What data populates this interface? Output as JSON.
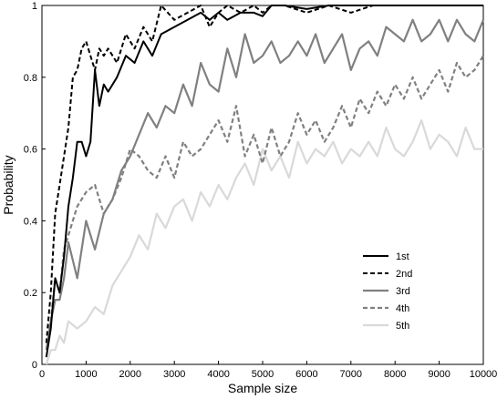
{
  "chart_data": {
    "type": "line",
    "title": "",
    "xlabel": "Sample size",
    "ylabel": "Probability",
    "xlim": [
      0,
      10000
    ],
    "ylim": [
      0,
      1
    ],
    "xticks": [
      0,
      1000,
      2000,
      3000,
      4000,
      5000,
      6000,
      7000,
      8000,
      9000,
      10000
    ],
    "yticks": [
      0,
      0.2,
      0.4,
      0.6,
      0.8,
      1
    ],
    "grid": false,
    "legend_position": "lower-right",
    "series": [
      {
        "name": "1st",
        "color": "#000000",
        "dash": "solid",
        "x": [
          100,
          200,
          300,
          400,
          500,
          600,
          700,
          800,
          900,
          1000,
          1100,
          1200,
          1300,
          1400,
          1500,
          1700,
          1900,
          2100,
          2300,
          2500,
          2700,
          3000,
          3300,
          3600,
          3800,
          4000,
          4200,
          4500,
          4800,
          5000,
          5200,
          5500,
          6000,
          6500,
          7000,
          7500,
          8000,
          8500,
          9000,
          9500,
          10000
        ],
        "y": [
          0.02,
          0.1,
          0.24,
          0.2,
          0.3,
          0.44,
          0.52,
          0.62,
          0.62,
          0.58,
          0.62,
          0.82,
          0.72,
          0.78,
          0.76,
          0.8,
          0.86,
          0.84,
          0.9,
          0.86,
          0.92,
          0.94,
          0.96,
          0.98,
          0.96,
          0.98,
          0.96,
          0.98,
          0.98,
          0.97,
          1.0,
          1.0,
          0.99,
          1.0,
          1.0,
          1.0,
          1.0,
          1.0,
          1.0,
          1.0,
          1.0
        ]
      },
      {
        "name": "2nd",
        "color": "#000000",
        "dash": "dashed",
        "x": [
          100,
          200,
          300,
          400,
          500,
          600,
          700,
          800,
          900,
          1000,
          1100,
          1200,
          1300,
          1400,
          1500,
          1700,
          1900,
          2100,
          2300,
          2500,
          2700,
          3000,
          3300,
          3600,
          3800,
          4000,
          4200,
          4500,
          4800,
          5000,
          5200,
          5500,
          6000,
          6500,
          7000,
          7500
        ],
        "y": [
          0.06,
          0.2,
          0.42,
          0.5,
          0.58,
          0.66,
          0.8,
          0.82,
          0.88,
          0.9,
          0.86,
          0.82,
          0.88,
          0.86,
          0.88,
          0.84,
          0.92,
          0.88,
          0.94,
          0.9,
          1.0,
          0.96,
          0.98,
          1.0,
          0.94,
          0.98,
          1.0,
          0.98,
          1.0,
          0.98,
          1.0,
          1.0,
          0.98,
          1.0,
          0.98,
          1.0
        ]
      },
      {
        "name": "3rd",
        "color": "#808080",
        "dash": "solid",
        "x": [
          100,
          200,
          300,
          400,
          500,
          600,
          800,
          1000,
          1200,
          1400,
          1600,
          1800,
          2000,
          2200,
          2400,
          2600,
          2800,
          3000,
          3200,
          3400,
          3600,
          3800,
          4000,
          4200,
          4400,
          4600,
          4800,
          5000,
          5200,
          5400,
          5600,
          5800,
          6000,
          6200,
          6400,
          6600,
          6800,
          7000,
          7200,
          7400,
          7600,
          7800,
          8000,
          8200,
          8400,
          8600,
          8800,
          9000,
          9200,
          9400,
          9600,
          9800,
          10000
        ],
        "y": [
          0.04,
          0.12,
          0.18,
          0.18,
          0.24,
          0.34,
          0.24,
          0.4,
          0.32,
          0.42,
          0.46,
          0.54,
          0.58,
          0.64,
          0.7,
          0.66,
          0.72,
          0.7,
          0.78,
          0.72,
          0.84,
          0.78,
          0.76,
          0.88,
          0.8,
          0.92,
          0.84,
          0.86,
          0.9,
          0.84,
          0.86,
          0.9,
          0.86,
          0.92,
          0.84,
          0.88,
          0.92,
          0.82,
          0.88,
          0.9,
          0.86,
          0.94,
          0.92,
          0.9,
          0.96,
          0.9,
          0.92,
          0.96,
          0.9,
          0.96,
          0.92,
          0.9,
          0.96
        ]
      },
      {
        "name": "4th",
        "color": "#808080",
        "dash": "dashed",
        "x": [
          100,
          200,
          300,
          400,
          500,
          600,
          800,
          1000,
          1200,
          1400,
          1600,
          1800,
          2000,
          2200,
          2400,
          2600,
          2800,
          3000,
          3200,
          3400,
          3600,
          3800,
          4000,
          4200,
          4400,
          4600,
          4800,
          5000,
          5200,
          5400,
          5600,
          5800,
          6000,
          6200,
          6400,
          6600,
          6800,
          7000,
          7200,
          7400,
          7600,
          7800,
          8000,
          8200,
          8400,
          8600,
          8800,
          9000,
          9200,
          9400,
          9600,
          9800,
          10000
        ],
        "y": [
          0.06,
          0.12,
          0.24,
          0.2,
          0.32,
          0.36,
          0.44,
          0.48,
          0.5,
          0.42,
          0.46,
          0.52,
          0.6,
          0.58,
          0.54,
          0.52,
          0.58,
          0.52,
          0.62,
          0.58,
          0.6,
          0.64,
          0.68,
          0.62,
          0.72,
          0.58,
          0.64,
          0.56,
          0.66,
          0.58,
          0.62,
          0.7,
          0.64,
          0.68,
          0.62,
          0.66,
          0.72,
          0.66,
          0.74,
          0.7,
          0.76,
          0.72,
          0.78,
          0.74,
          0.8,
          0.74,
          0.78,
          0.82,
          0.76,
          0.84,
          0.8,
          0.82,
          0.86
        ]
      },
      {
        "name": "5th",
        "color": "#d9d9d9",
        "dash": "solid",
        "x": [
          100,
          200,
          300,
          400,
          500,
          600,
          800,
          1000,
          1200,
          1400,
          1600,
          1800,
          2000,
          2200,
          2400,
          2600,
          2800,
          3000,
          3200,
          3400,
          3600,
          3800,
          4000,
          4200,
          4400,
          4600,
          4800,
          5000,
          5200,
          5400,
          5600,
          5800,
          6000,
          6200,
          6400,
          6600,
          6800,
          7000,
          7200,
          7400,
          7600,
          7800,
          8000,
          8200,
          8400,
          8600,
          8800,
          9000,
          9200,
          9400,
          9600,
          9800,
          10000
        ],
        "y": [
          0.0,
          0.04,
          0.04,
          0.08,
          0.06,
          0.12,
          0.1,
          0.12,
          0.16,
          0.14,
          0.22,
          0.26,
          0.3,
          0.36,
          0.32,
          0.42,
          0.38,
          0.44,
          0.46,
          0.4,
          0.48,
          0.44,
          0.5,
          0.46,
          0.52,
          0.56,
          0.5,
          0.6,
          0.54,
          0.58,
          0.52,
          0.62,
          0.56,
          0.6,
          0.58,
          0.62,
          0.56,
          0.6,
          0.58,
          0.62,
          0.58,
          0.66,
          0.6,
          0.58,
          0.62,
          0.68,
          0.6,
          0.64,
          0.62,
          0.58,
          0.66,
          0.6,
          0.6
        ]
      }
    ]
  }
}
